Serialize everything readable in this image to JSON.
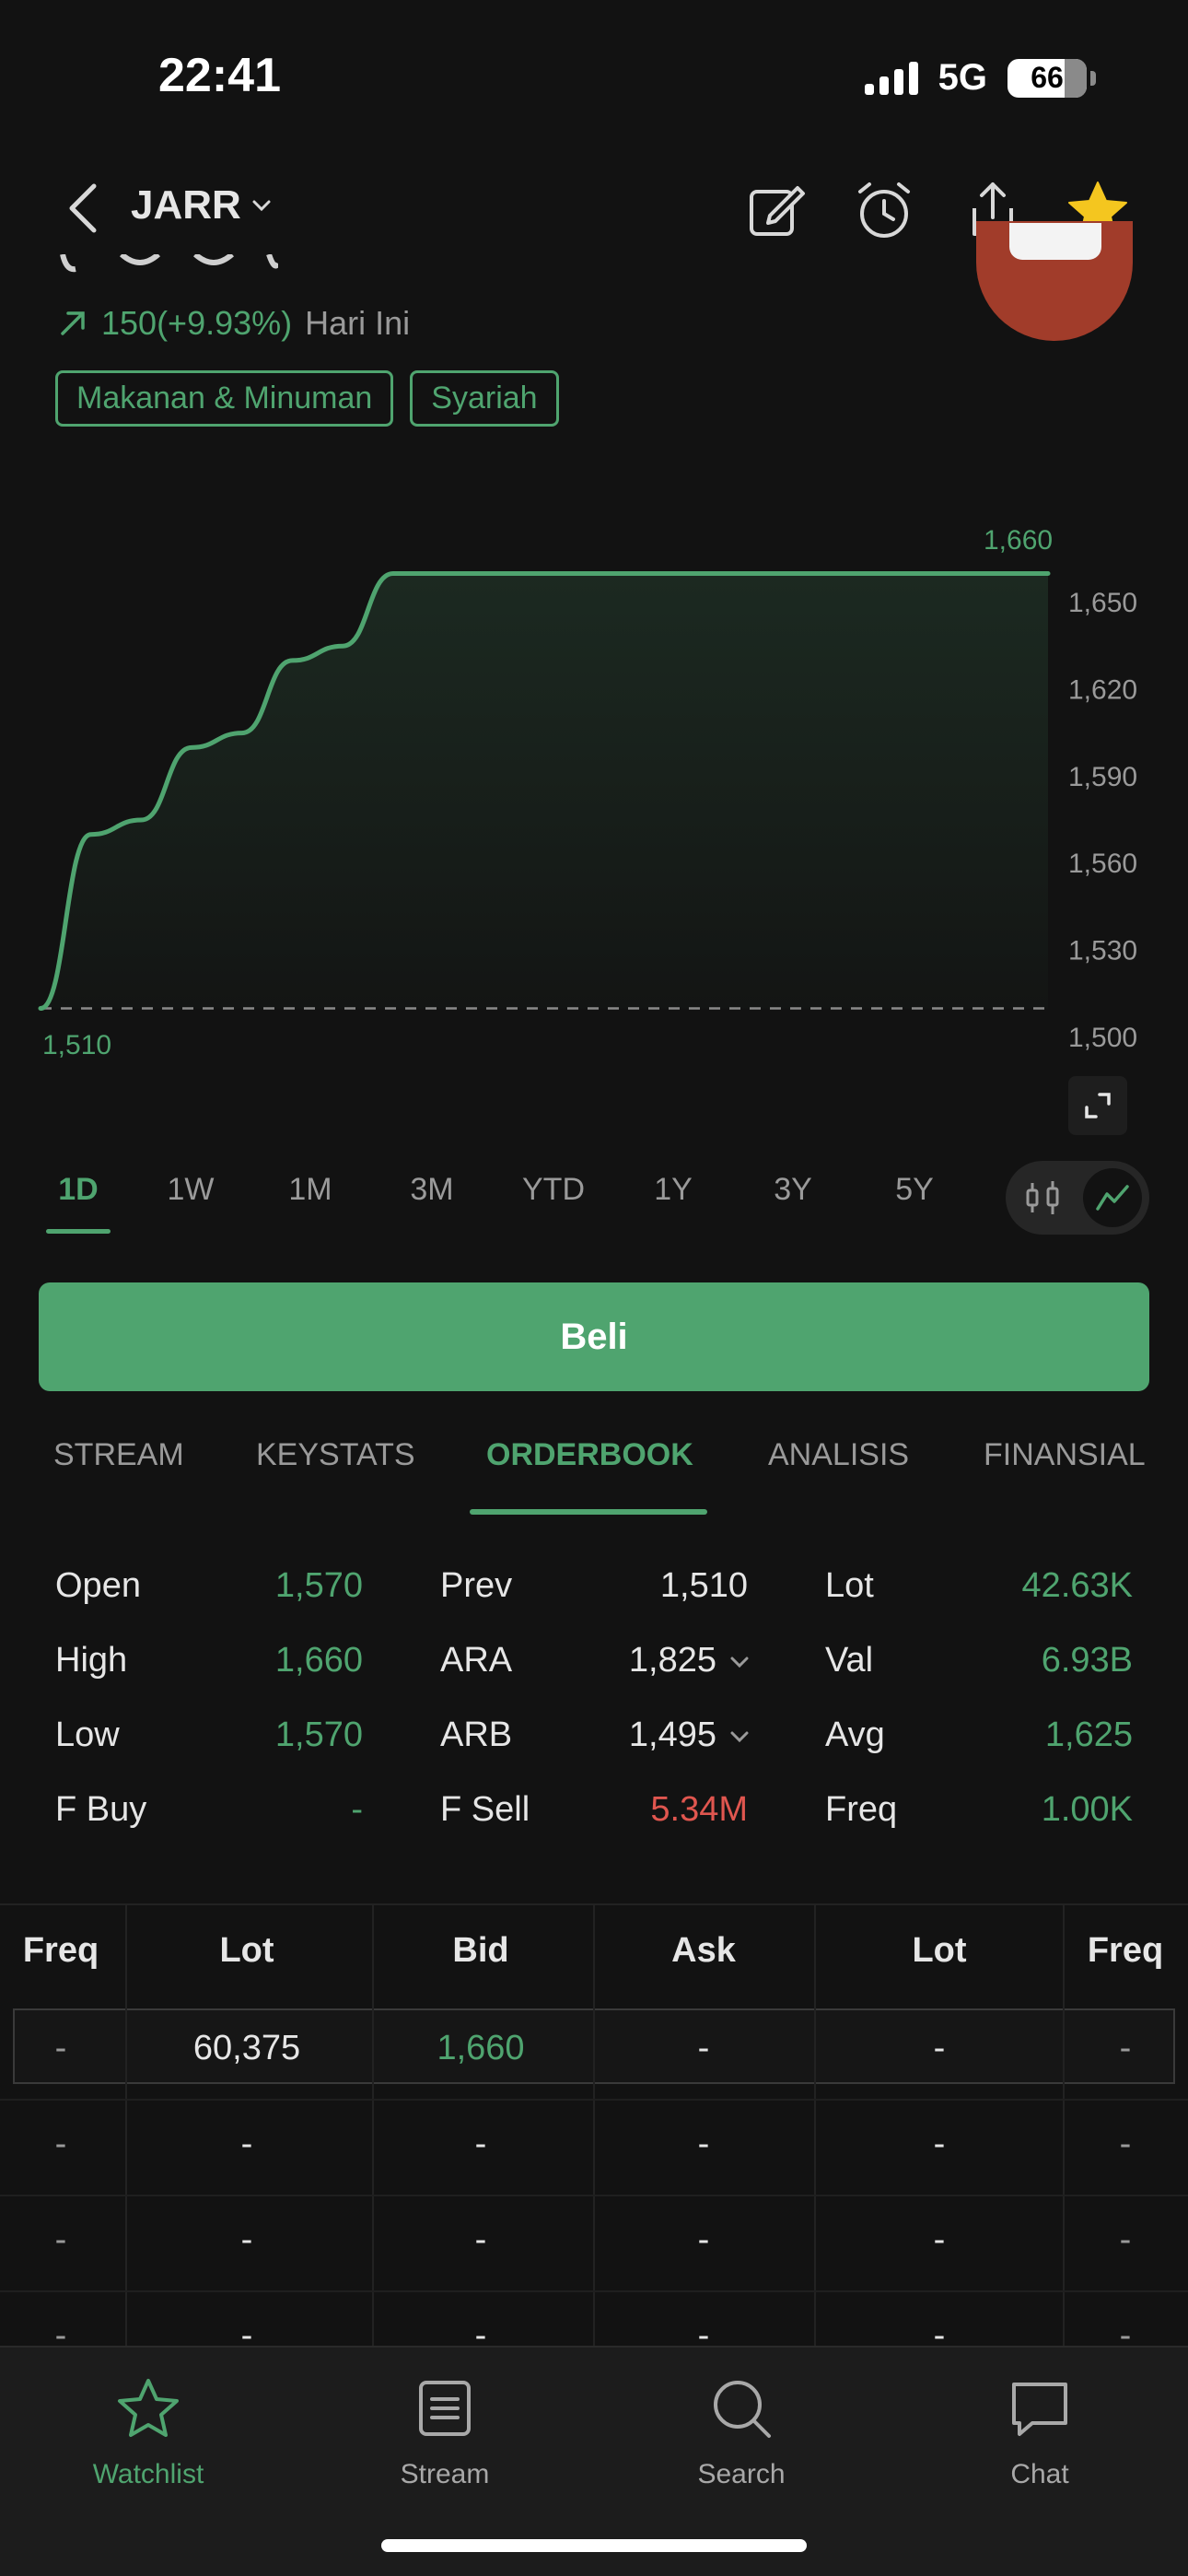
{
  "status_bar": {
    "time": "22:41",
    "network": "5G",
    "battery": "66"
  },
  "header": {
    "ticker": "JARR"
  },
  "quote": {
    "change": "150(+9.93%)",
    "period_label": "Hari Ini",
    "tags": [
      "Makanan & Minuman",
      "Syariah"
    ]
  },
  "chart_data": {
    "type": "area",
    "x": [
      0,
      1,
      2,
      3,
      4,
      5,
      6,
      7,
      8,
      9,
      10,
      11,
      12,
      13,
      14,
      15,
      16,
      17,
      18,
      19,
      20
    ],
    "values": [
      1510,
      1570,
      1575,
      1600,
      1605,
      1630,
      1635,
      1660,
      1660,
      1660,
      1660,
      1660,
      1660,
      1660,
      1660,
      1660,
      1660,
      1660,
      1660,
      1660,
      1660
    ],
    "baseline": 1510,
    "high_label": "1,660",
    "low_label": "1,510",
    "y_ticks": [
      "1,650",
      "1,620",
      "1,590",
      "1,560",
      "1,530",
      "1,500"
    ],
    "y_tick_values": [
      1650,
      1620,
      1590,
      1560,
      1530,
      1500
    ],
    "ylim": [
      1500,
      1665
    ],
    "line_color": "#4fa46f",
    "grid": false
  },
  "periods": [
    "1D",
    "1W",
    "1M",
    "3M",
    "YTD",
    "1Y",
    "3Y",
    "5Y"
  ],
  "active_period": "1D",
  "buy_label": "Beli",
  "tabs": [
    "STREAM",
    "KEYSTATS",
    "ORDERBOOK",
    "ANALISIS",
    "FINANSIAL"
  ],
  "active_tab": "ORDERBOOK",
  "stats": [
    {
      "label": "Open",
      "value": "1,570",
      "tone": "green"
    },
    {
      "label": "High",
      "value": "1,660",
      "tone": "green"
    },
    {
      "label": "Low",
      "value": "1,570",
      "tone": "green"
    },
    {
      "label": "F Buy",
      "value": "-",
      "tone": "green"
    },
    {
      "label": "Prev",
      "value": "1,510",
      "tone": "white"
    },
    {
      "label": "ARA",
      "value": "1,825",
      "tone": "white",
      "dropdown": true
    },
    {
      "label": "ARB",
      "value": "1,495",
      "tone": "white",
      "dropdown": true
    },
    {
      "label": "F Sell",
      "value": "5.34M",
      "tone": "red"
    },
    {
      "label": "Lot",
      "value": "42.63K",
      "tone": "green"
    },
    {
      "label": "Val",
      "value": "6.93B",
      "tone": "green"
    },
    {
      "label": "Avg",
      "value": "1,625",
      "tone": "green"
    },
    {
      "label": "Freq",
      "value": "1.00K",
      "tone": "green"
    }
  ],
  "orderbook": {
    "headers": [
      "Freq",
      "Lot",
      "Bid",
      "Ask",
      "Lot",
      "Freq"
    ],
    "rows": [
      [
        "-",
        "60,375",
        "1,660",
        "-",
        "-",
        "-"
      ],
      [
        "-",
        "-",
        "-",
        "-",
        "-",
        "-"
      ],
      [
        "-",
        "-",
        "-",
        "-",
        "-",
        "-"
      ],
      [
        "-",
        "-",
        "-",
        "-",
        "-",
        "-"
      ]
    ]
  },
  "bottom_nav": [
    {
      "label": "Watchlist",
      "icon": "star-icon",
      "active": true
    },
    {
      "label": "Stream",
      "icon": "document-icon",
      "active": false
    },
    {
      "label": "Search",
      "icon": "search-icon",
      "active": false
    },
    {
      "label": "Chat",
      "icon": "chat-icon",
      "active": false
    }
  ],
  "colors": {
    "accent": "#4fa46f",
    "negative": "#e0564f",
    "background": "#121212"
  }
}
